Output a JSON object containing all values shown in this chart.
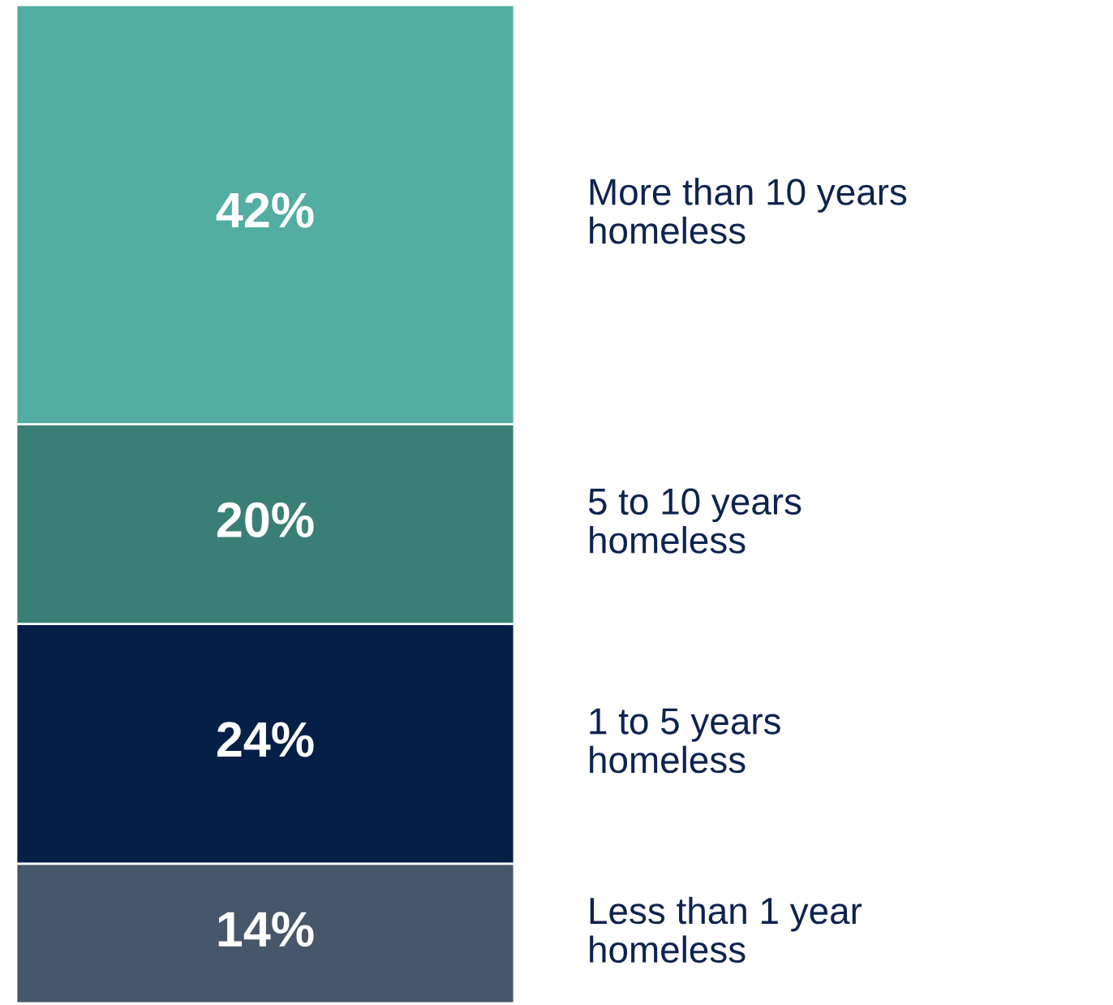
{
  "chart_data": {
    "type": "bar",
    "stacked": true,
    "categories": [
      null
    ],
    "tick_labels": false,
    "legend": false,
    "series": [
      {
        "name": "Less than 1 year homeless",
        "color": "#46566b",
        "values": [
          14
        ],
        "value_labels": [
          "14%"
        ]
      },
      {
        "name": "1 to 5 years homeless",
        "color": "#061f47",
        "values": [
          24
        ],
        "value_labels": [
          "24%"
        ]
      },
      {
        "name": "5 to 10 years homeless",
        "color": "#3a7f75",
        "values": [
          20
        ],
        "value_labels": [
          "20%"
        ]
      },
      {
        "name": "More than 10 years homeless",
        "color": "#52ada2",
        "values": [
          42
        ],
        "value_labels": [
          "42%"
        ]
      }
    ]
  }
}
